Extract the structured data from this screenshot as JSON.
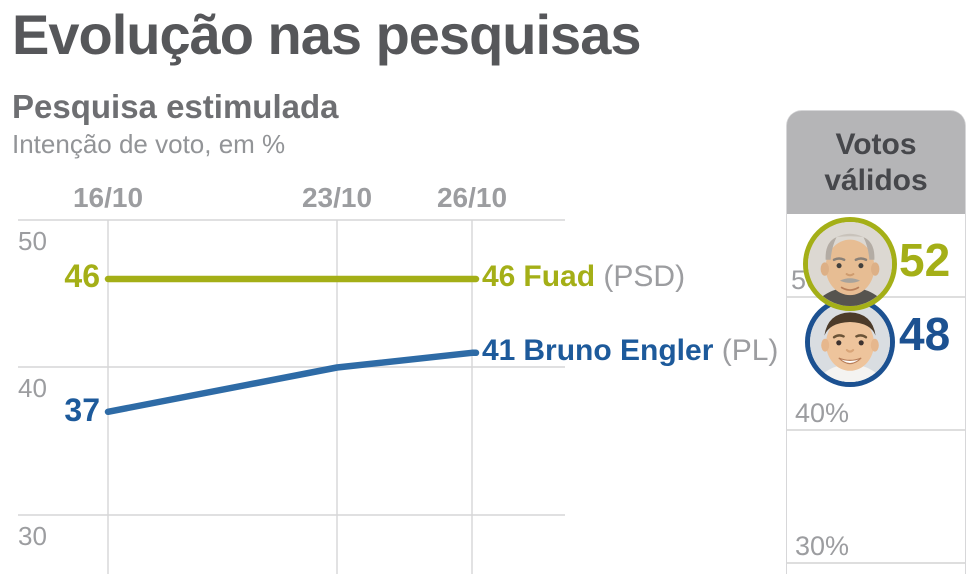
{
  "header": {
    "title": "Evolução nas pesquisas",
    "subtitle": "Pesquisa estimulada",
    "description": "Intenção de voto, em %"
  },
  "chart_data": {
    "type": "line",
    "x": [
      "16/10",
      "23/10",
      "26/10"
    ],
    "y_ticks": [
      "50",
      "40",
      "30"
    ],
    "y_tick_values": [
      50,
      40,
      30
    ],
    "ylim": [
      27,
      52
    ],
    "grid": true,
    "series": [
      {
        "name": "Fuad",
        "party": "(PSD)",
        "color": "#a4af17",
        "values": [
          46,
          46,
          46
        ],
        "start_label": "46",
        "end_label": "46"
      },
      {
        "name": "Bruno Engler",
        "party": "(PL)",
        "color": "#2e6ba6",
        "text_color": "#1d5a9b",
        "values": [
          37,
          40,
          41
        ],
        "start_label": "37",
        "end_label": "41"
      }
    ]
  },
  "panel": {
    "title": "Votos válidos",
    "axis_labels": [
      "50%",
      "40%",
      "30%"
    ],
    "candidates": [
      {
        "name": "Fuad",
        "value": "52",
        "color": "#a4af17"
      },
      {
        "name": "Bruno Engler",
        "value": "48",
        "color": "#1c5191"
      }
    ]
  }
}
